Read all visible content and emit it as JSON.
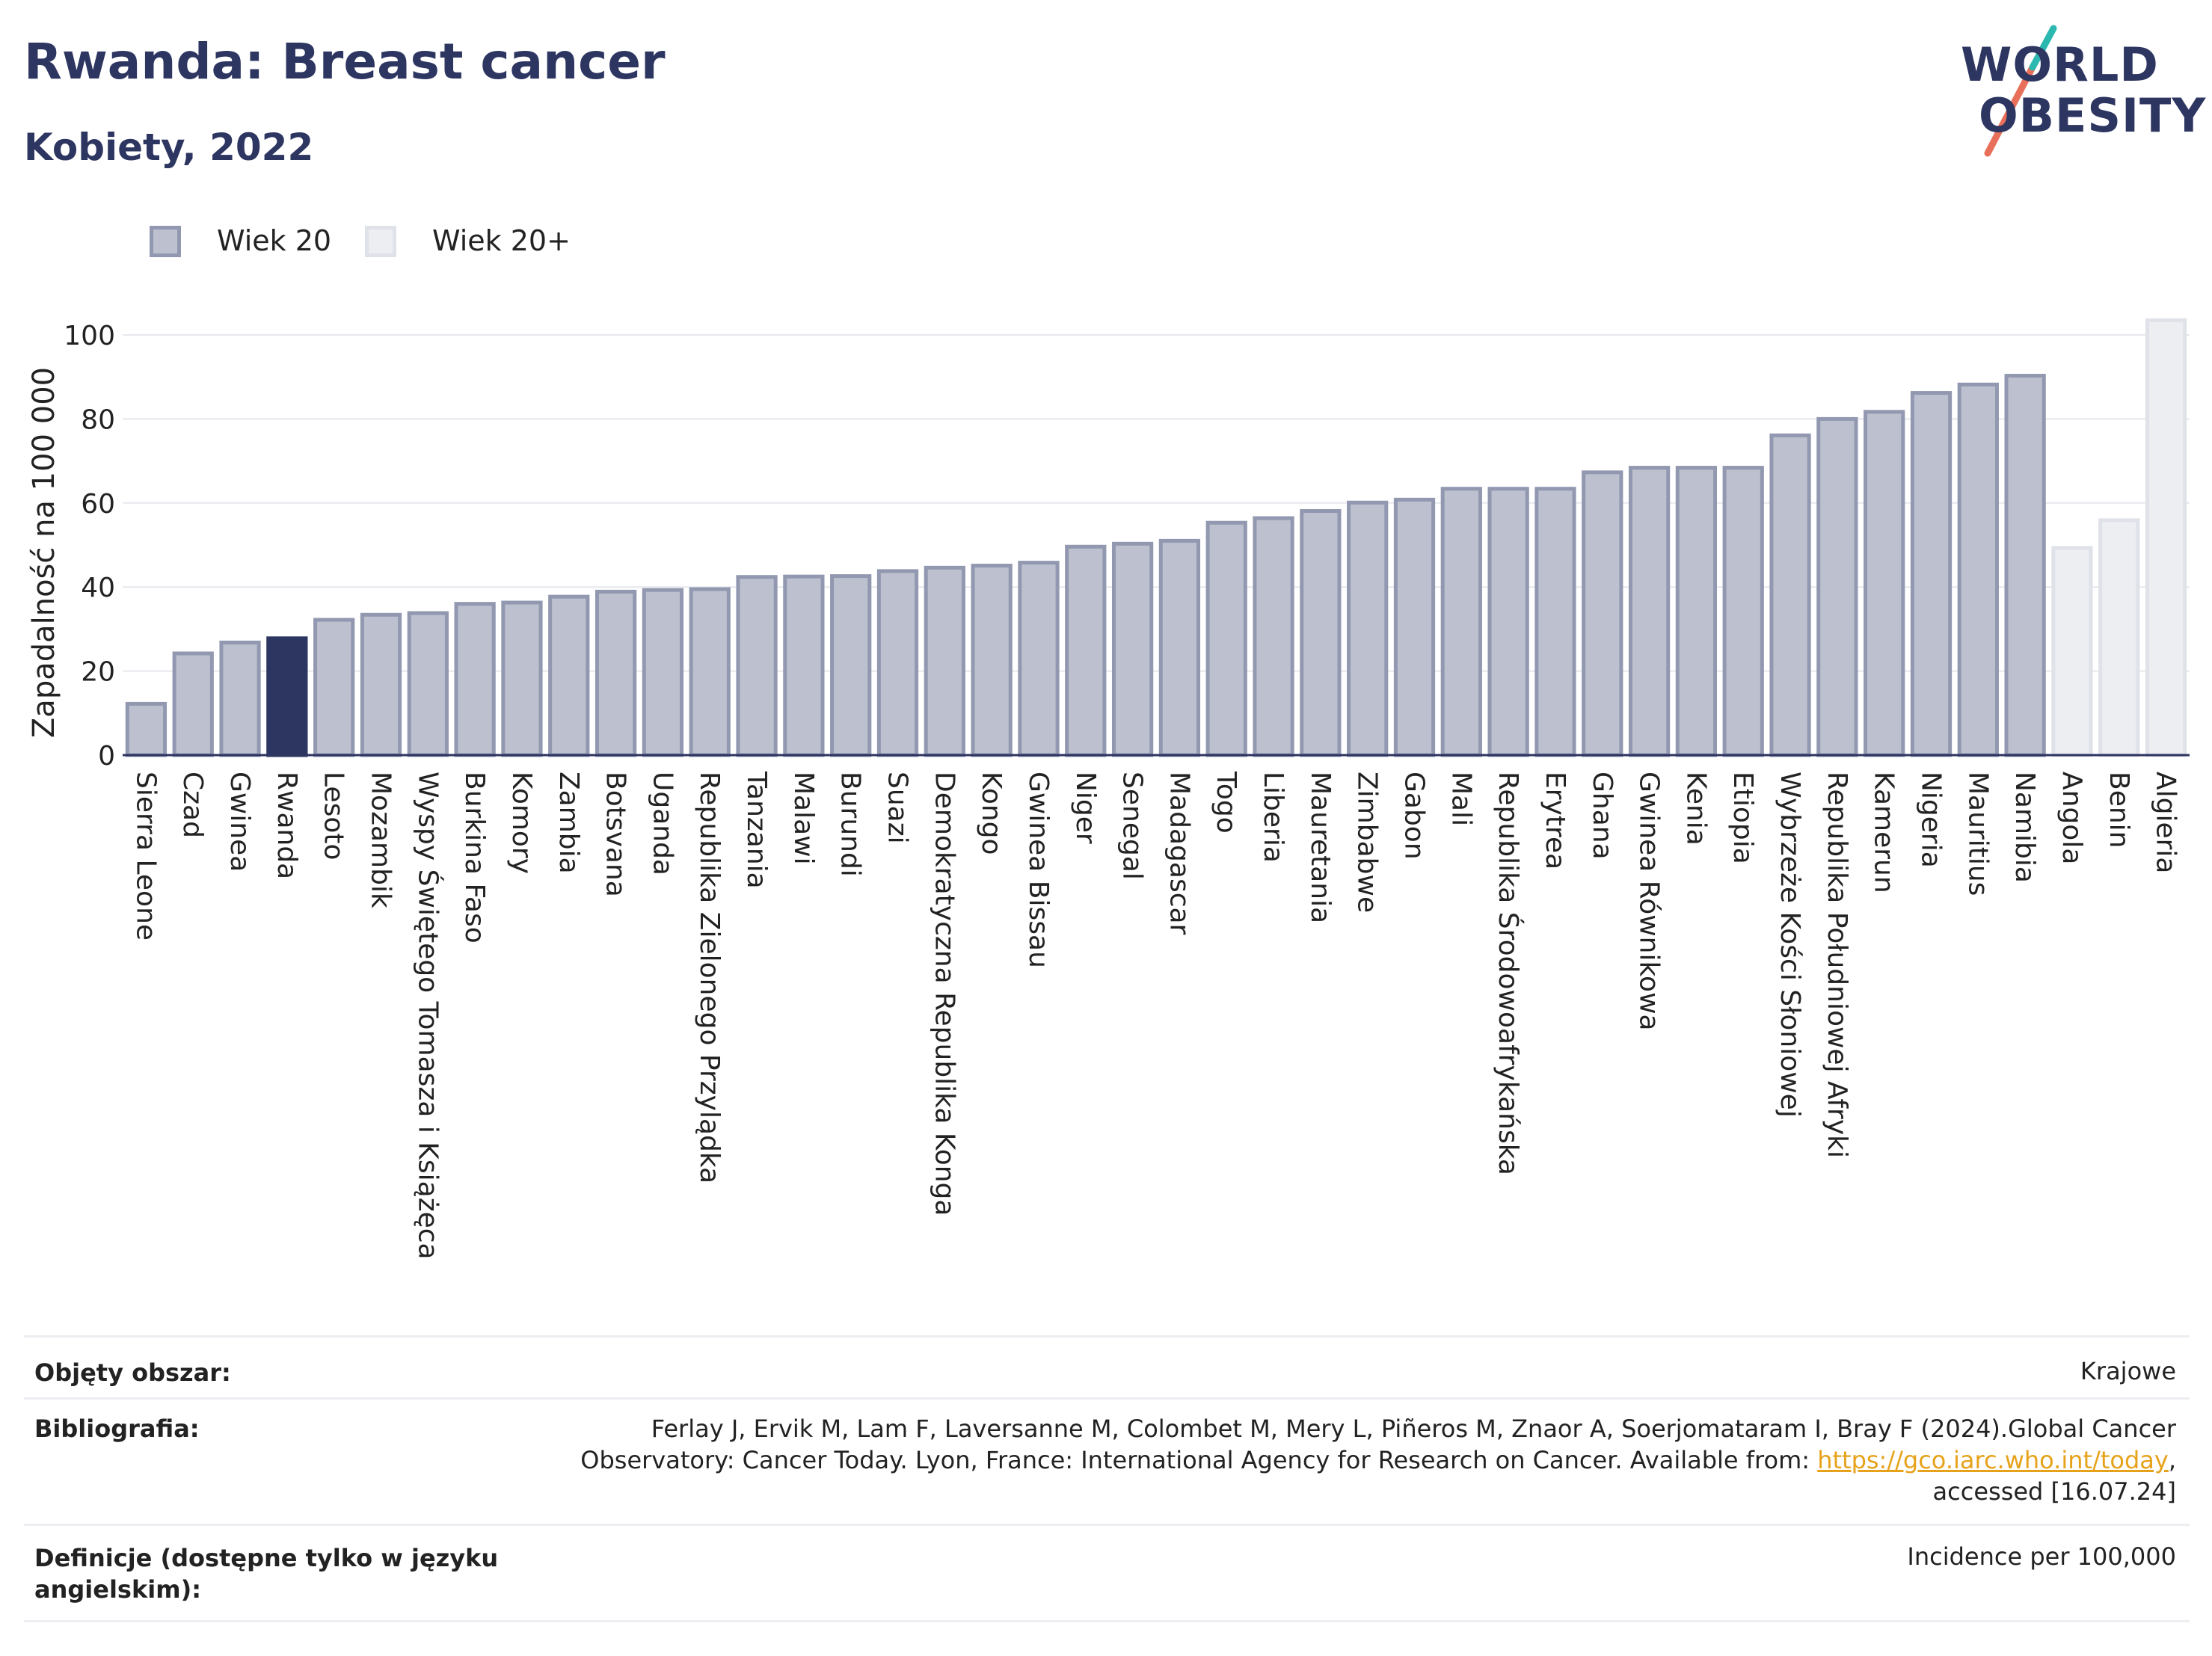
{
  "header": {
    "title": "Rwanda: Breast cancer",
    "subtitle": "Kobiety, 2022",
    "logo_word1": "WORLD",
    "logo_word2": "OBESITY"
  },
  "legend": {
    "items": [
      {
        "label": "Wiek 20",
        "color": "#bcc0cf",
        "border": "#9298b0"
      },
      {
        "label": "Wiek 20+",
        "color": "#eceef2",
        "border": "#dfe2e8"
      }
    ]
  },
  "chart_data": {
    "type": "bar",
    "ylabel": "Zapadalność na 100 000",
    "ylim": [
      0,
      105
    ],
    "yticks": [
      0,
      20,
      40,
      60,
      80,
      100
    ],
    "grid": true,
    "highlight": "Rwanda",
    "highlight_color": "#2d3561",
    "series": [
      {
        "name": "Wiek 20",
        "color": "#bcc0cf"
      },
      {
        "name": "Wiek 20+",
        "color": "#eceef2"
      }
    ],
    "categories": [
      "Sierra Leone",
      "Czad",
      "Gwinea",
      "Rwanda",
      "Lesoto",
      "Mozambik",
      "Wyspy Świętego Tomasza i Książęca",
      "Burkina Faso",
      "Komory",
      "Zambia",
      "Botsvana",
      "Uganda",
      "Republika Zielonego Przylądka",
      "Tanzania",
      "Malawi",
      "Burundi",
      "Suazi",
      "Demokratyczna Republika Konga",
      "Kongo",
      "Gwinea Bissau",
      "Niger",
      "Senegal",
      "Madagascar",
      "Togo",
      "Liberia",
      "Mauretania",
      "Zimbabwe",
      "Gabon",
      "Mali",
      "Republika Środowoafrykańska",
      "Erytrea",
      "Ghana",
      "Gwinea Równikowa",
      "Kenia",
      "Etiopia",
      "Wybrzeże Kości Słoniowej",
      "Republika Południowej Afryki",
      "Kamerun",
      "Nigeria",
      "Mauritius",
      "Namibia",
      "Angola",
      "Benin",
      "Algieria"
    ],
    "values": [
      12.2,
      24.2,
      26.8,
      27.8,
      32.2,
      33.4,
      33.8,
      36.0,
      36.3,
      37.7,
      38.9,
      39.3,
      39.5,
      42.4,
      42.5,
      42.6,
      43.8,
      44.6,
      45.1,
      45.8,
      49.6,
      50.3,
      51.0,
      55.3,
      56.4,
      58.1,
      60.1,
      60.8,
      63.4,
      63.4,
      63.4,
      67.3,
      68.4,
      68.4,
      68.4,
      76.1,
      80.0,
      81.7,
      86.2,
      88.2,
      90.3,
      49.3,
      55.9,
      103.5
    ],
    "series_index": [
      0,
      0,
      0,
      0,
      0,
      0,
      0,
      0,
      0,
      0,
      0,
      0,
      0,
      0,
      0,
      0,
      0,
      0,
      0,
      0,
      0,
      0,
      0,
      0,
      0,
      0,
      0,
      0,
      0,
      0,
      0,
      0,
      0,
      0,
      0,
      0,
      0,
      0,
      0,
      0,
      0,
      1,
      1,
      1
    ]
  },
  "footer": {
    "rows": [
      {
        "label": "Objęty obszar:",
        "value_lines": [
          "Krajowe"
        ]
      },
      {
        "label": "Bibliografia:",
        "value_lines": [
          "Ferlay J, Ervik M, Lam F, Laversanne M, Colombet M, Mery L, Piñeros M, Znaor A, Soerjomataram I, Bray F (2024).Global Cancer",
          "Observatory: Cancer Today. Lyon, France: International Agency for Research on Cancer. Available from: ",
          "accessed [16.07.24]"
        ],
        "link": "https://gco.iarc.who.int/today",
        "link_suffix": ","
      },
      {
        "label": "Definicje (dostępne tylko w języku angielskim):",
        "value_lines": [
          "Incidence per 100,000"
        ]
      }
    ]
  }
}
